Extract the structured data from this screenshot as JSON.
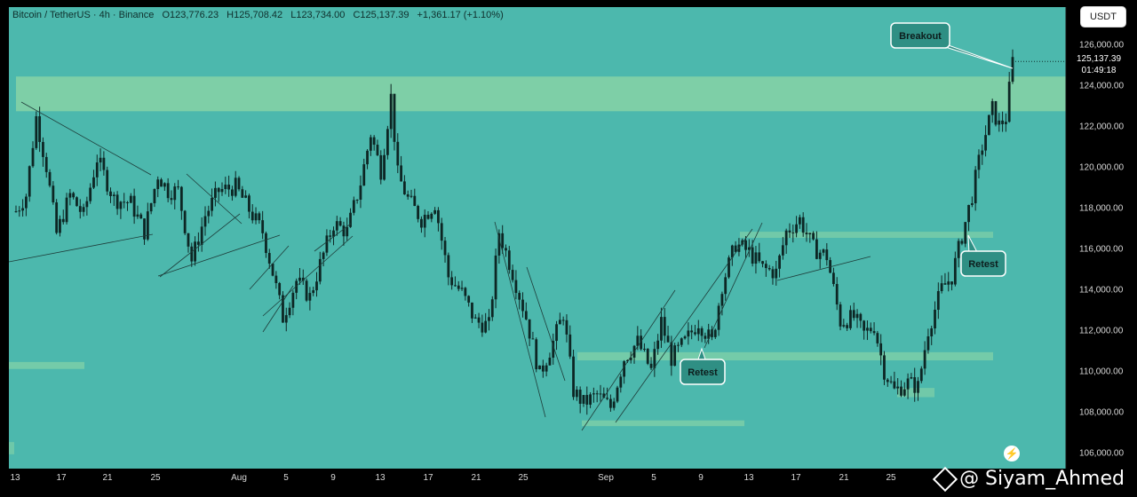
{
  "header": {
    "symbol": "Bitcoin / TetherUS · 4h · Binance",
    "open": "O123,776.23",
    "high": "H125,708.42",
    "low": "L123,734.00",
    "close": "C125,137.39",
    "change": "+1,361.17 (+1.10%)"
  },
  "currency_button": "USDT",
  "price_tag": {
    "price": "125,137.39",
    "countdown": "01:49:18"
  },
  "annotations": {
    "breakout": "Breakout",
    "retest_1": "Retest",
    "retest_2": "Retest"
  },
  "watermark": "@ Siyam_Ahmed",
  "colors": {
    "background": "#4cb8ad",
    "candle": "#0d2624",
    "zone": "#8fd7a6",
    "label_bg": "#2f8f84"
  },
  "chart_data": {
    "type": "candlestick",
    "y_ticks": [
      "126,000.00",
      "124,000.00",
      "122,000.00",
      "120,000.00",
      "118,000.00",
      "116,000.00",
      "114,000.00",
      "112,000.00",
      "110,000.00",
      "108,000.00",
      "106,000.00"
    ],
    "ylim": [
      105200,
      127800
    ],
    "x_tick_labels": [
      "13",
      "17",
      "21",
      "25",
      "Aug",
      "5",
      "9",
      "13",
      "17",
      "21",
      "25",
      "Sep",
      "5",
      "9",
      "13",
      "17",
      "21",
      "25"
    ],
    "price_path": [
      {
        "x": 0,
        "y": 117800
      },
      {
        "x": 3,
        "y": 118600
      },
      {
        "x": 6,
        "y": 122400
      },
      {
        "x": 9,
        "y": 120000
      },
      {
        "x": 12,
        "y": 116700
      },
      {
        "x": 16,
        "y": 118600
      },
      {
        "x": 20,
        "y": 117600
      },
      {
        "x": 24,
        "y": 120400
      },
      {
        "x": 29,
        "y": 118400
      },
      {
        "x": 34,
        "y": 118200
      },
      {
        "x": 38,
        "y": 116800
      },
      {
        "x": 42,
        "y": 119600
      },
      {
        "x": 45,
        "y": 118800
      },
      {
        "x": 48,
        "y": 118800
      },
      {
        "x": 52,
        "y": 115400
      },
      {
        "x": 56,
        "y": 117600
      },
      {
        "x": 60,
        "y": 118800
      },
      {
        "x": 65,
        "y": 119000
      },
      {
        "x": 70,
        "y": 117600
      },
      {
        "x": 73,
        "y": 116800
      },
      {
        "x": 76,
        "y": 114800
      },
      {
        "x": 79,
        "y": 112600
      },
      {
        "x": 83,
        "y": 114400
      },
      {
        "x": 87,
        "y": 113600
      },
      {
        "x": 90,
        "y": 115200
      },
      {
        "x": 94,
        "y": 117200
      },
      {
        "x": 98,
        "y": 116800
      },
      {
        "x": 102,
        "y": 119200
      },
      {
        "x": 105,
        "y": 121600
      },
      {
        "x": 108,
        "y": 119800
      },
      {
        "x": 111,
        "y": 123400
      },
      {
        "x": 113,
        "y": 119600
      },
      {
        "x": 116,
        "y": 118400
      },
      {
        "x": 120,
        "y": 117400
      },
      {
        "x": 124,
        "y": 118200
      },
      {
        "x": 128,
        "y": 114600
      },
      {
        "x": 132,
        "y": 113800
      },
      {
        "x": 136,
        "y": 112400
      },
      {
        "x": 140,
        "y": 112200
      },
      {
        "x": 143,
        "y": 116800
      },
      {
        "x": 147,
        "y": 114800
      },
      {
        "x": 151,
        "y": 112600
      },
      {
        "x": 155,
        "y": 109800
      },
      {
        "x": 159,
        "y": 111400
      },
      {
        "x": 162,
        "y": 112800
      },
      {
        "x": 165,
        "y": 109000
      },
      {
        "x": 168,
        "y": 108400
      },
      {
        "x": 172,
        "y": 108800
      },
      {
        "x": 176,
        "y": 108200
      },
      {
        "x": 180,
        "y": 110600
      },
      {
        "x": 184,
        "y": 111400
      },
      {
        "x": 188,
        "y": 110000
      },
      {
        "x": 191,
        "y": 112400
      },
      {
        "x": 194,
        "y": 110600
      },
      {
        "x": 198,
        "y": 111400
      },
      {
        "x": 202,
        "y": 112400
      },
      {
        "x": 206,
        "y": 111400
      },
      {
        "x": 209,
        "y": 114200
      },
      {
        "x": 213,
        "y": 116200
      },
      {
        "x": 217,
        "y": 115800
      },
      {
        "x": 221,
        "y": 115000
      },
      {
        "x": 225,
        "y": 114800
      },
      {
        "x": 228,
        "y": 116800
      },
      {
        "x": 232,
        "y": 117400
      },
      {
        "x": 236,
        "y": 116000
      },
      {
        "x": 240,
        "y": 115600
      },
      {
        "x": 244,
        "y": 112400
      },
      {
        "x": 248,
        "y": 112600
      },
      {
        "x": 251,
        "y": 111800
      },
      {
        "x": 254,
        "y": 112200
      },
      {
        "x": 257,
        "y": 110000
      },
      {
        "x": 260,
        "y": 109000
      },
      {
        "x": 264,
        "y": 109400
      },
      {
        "x": 267,
        "y": 109200
      },
      {
        "x": 270,
        "y": 112000
      },
      {
        "x": 274,
        "y": 114000
      },
      {
        "x": 277,
        "y": 114600
      },
      {
        "x": 280,
        "y": 116600
      },
      {
        "x": 283,
        "y": 118600
      },
      {
        "x": 286,
        "y": 121000
      },
      {
        "x": 289,
        "y": 122800
      },
      {
        "x": 291,
        "y": 122000
      },
      {
        "x": 293,
        "y": 122400
      },
      {
        "x": 295,
        "y": 125137
      }
    ],
    "current_price": 125137.39
  }
}
